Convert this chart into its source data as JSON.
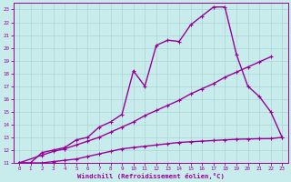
{
  "xlabel": "Windchill (Refroidissement éolien,°C)",
  "bg_color": "#c8ecec",
  "grid_color": "#aad4d4",
  "line_color": "#990099",
  "xlim": [
    -0.5,
    23.5
  ],
  "ylim": [
    11,
    23.5
  ],
  "xticks": [
    0,
    1,
    2,
    3,
    4,
    5,
    6,
    7,
    8,
    9,
    10,
    11,
    12,
    13,
    14,
    15,
    16,
    17,
    18,
    19,
    20,
    21,
    22,
    23
  ],
  "yticks": [
    11,
    12,
    13,
    14,
    15,
    16,
    17,
    18,
    19,
    20,
    21,
    22,
    23
  ],
  "line1_x": [
    0,
    1,
    2,
    3,
    4,
    5,
    6,
    7,
    8,
    9,
    10,
    11,
    12,
    13,
    14,
    15,
    16,
    17,
    18,
    19,
    20,
    21,
    22,
    23
  ],
  "line1_y": [
    11,
    11,
    11.8,
    12,
    12.2,
    12.8,
    13,
    13.8,
    14.2,
    14.8,
    18.2,
    17,
    20.2,
    20.6,
    20.5,
    21.8,
    22.5,
    23.2,
    23.2,
    19.5,
    17.0,
    16.2,
    15.0,
    13.0
  ],
  "line2_x": [
    0,
    2,
    3,
    4,
    5,
    6,
    7,
    8,
    9,
    10,
    11,
    12,
    13,
    14,
    15,
    16,
    17,
    18,
    19,
    20,
    21,
    22
  ],
  "line2_y": [
    11,
    11.6,
    11.9,
    12.1,
    12.4,
    12.7,
    13.0,
    13.4,
    13.8,
    14.2,
    14.7,
    15.1,
    15.5,
    15.9,
    16.4,
    16.8,
    17.2,
    17.7,
    18.1,
    18.5,
    18.9,
    19.3
  ],
  "line3_x": [
    0,
    1,
    2,
    3,
    4,
    5,
    6,
    7,
    8,
    9,
    10,
    11,
    12,
    13,
    14,
    15,
    16,
    17,
    18,
    19,
    20,
    21,
    22,
    23
  ],
  "line3_y": [
    11,
    11,
    11,
    11.1,
    11.2,
    11.3,
    11.5,
    11.7,
    11.9,
    12.1,
    12.2,
    12.3,
    12.4,
    12.5,
    12.6,
    12.65,
    12.7,
    12.75,
    12.8,
    12.85,
    12.87,
    12.89,
    12.9,
    13.0
  ],
  "markersize": 2.5,
  "linewidth": 1.0
}
